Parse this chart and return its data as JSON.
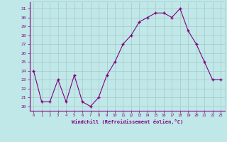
{
  "x": [
    0,
    1,
    2,
    3,
    4,
    5,
    6,
    7,
    8,
    9,
    10,
    11,
    12,
    13,
    14,
    15,
    16,
    17,
    18,
    19,
    20,
    21,
    22,
    23
  ],
  "y": [
    24,
    20.5,
    20.5,
    23,
    20.5,
    23.5,
    20.5,
    20,
    21,
    23.5,
    25,
    27,
    28,
    29.5,
    30,
    30.5,
    30.5,
    30,
    31,
    28.5,
    27,
    25,
    23,
    23
  ],
  "xlabel": "Windchill (Refroidissement éolien,°C)",
  "ylim": [
    19.5,
    31.8
  ],
  "xlim": [
    -0.5,
    23.5
  ],
  "yticks": [
    20,
    21,
    22,
    23,
    24,
    25,
    26,
    27,
    28,
    29,
    30,
    31
  ],
  "xticks": [
    0,
    1,
    2,
    3,
    4,
    5,
    6,
    7,
    8,
    9,
    10,
    11,
    12,
    13,
    14,
    15,
    16,
    17,
    18,
    19,
    20,
    21,
    22,
    23
  ],
  "line_color": "#800080",
  "marker": "+",
  "bg_color": "#c0e8e8",
  "grid_color": "#b0d8d8",
  "tick_color": "#800080",
  "label_color": "#800080"
}
